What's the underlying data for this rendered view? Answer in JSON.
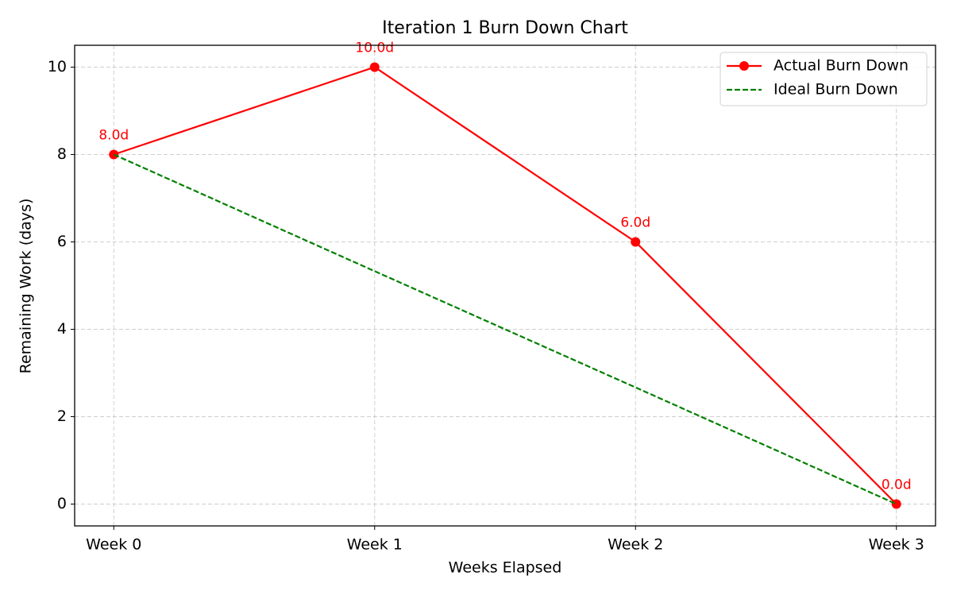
{
  "chart_data": {
    "type": "line",
    "title": "Iteration 1 Burn Down Chart",
    "xlabel": "Weeks Elapsed",
    "ylabel": "Remaining Work (days)",
    "categories": [
      "Week 0",
      "Week 1",
      "Week 2",
      "Week 3"
    ],
    "series": [
      {
        "name": "Actual Burn Down",
        "color": "#ff0000",
        "style": "solid",
        "marker": "o",
        "values": [
          8,
          10,
          6,
          0
        ],
        "value_labels": [
          "8.0d",
          "10.0d",
          "6.0d",
          "0.0d"
        ]
      },
      {
        "name": "Ideal Burn Down",
        "color": "#008000",
        "style": "dashed",
        "values": [
          8,
          5.33,
          2.67,
          0
        ]
      }
    ],
    "ylim": [
      -0.5,
      10.5
    ],
    "yticks": [
      0,
      2,
      4,
      6,
      8,
      10
    ],
    "grid": true,
    "legend": "upper right"
  }
}
